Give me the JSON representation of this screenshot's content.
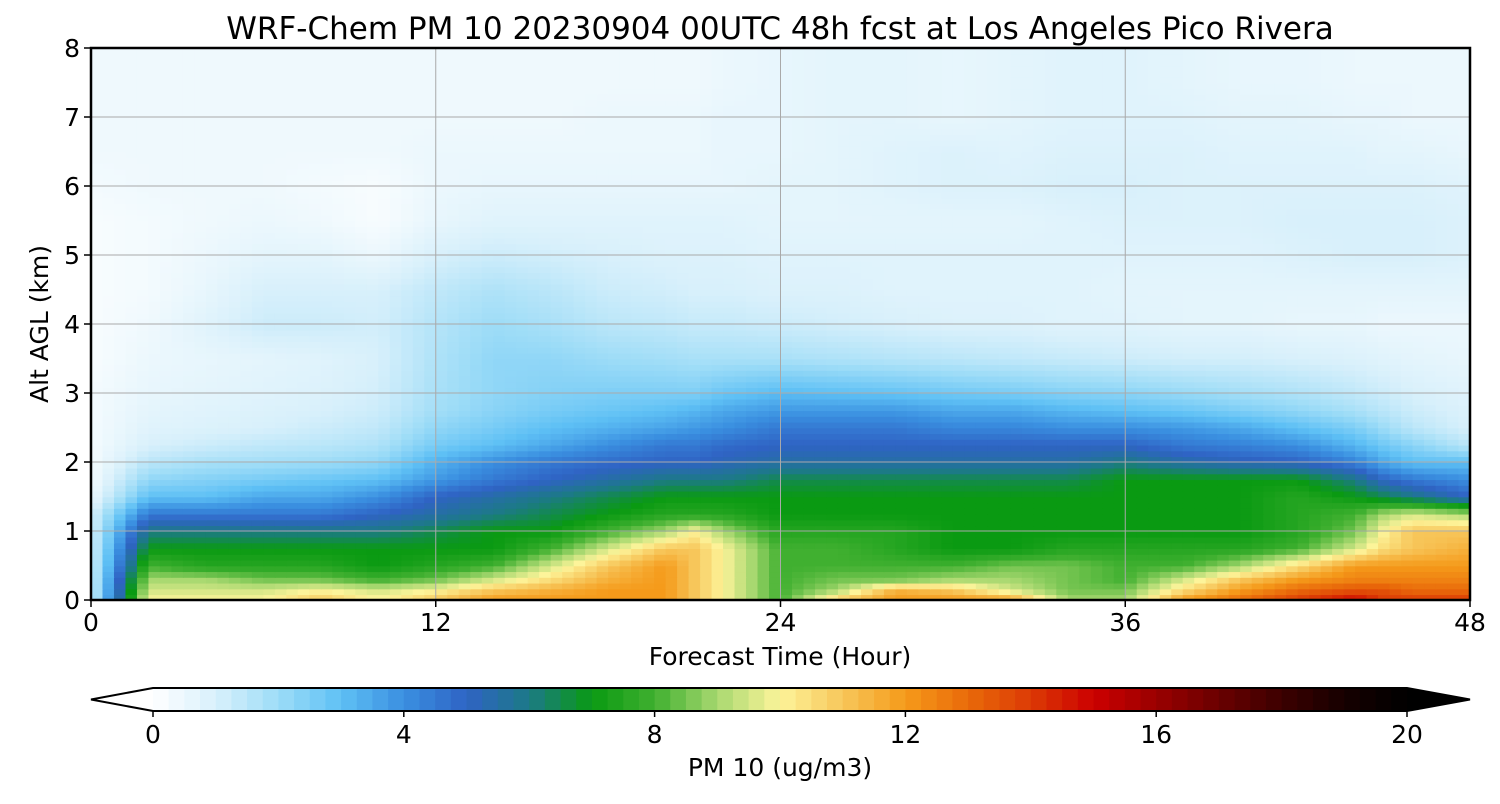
{
  "chart_data": {
    "type": "heatmap",
    "title": "WRF-Chem PM 10  20230904 00UTC 48h fcst at Los Angeles Pico Rivera",
    "xlabel": "Forecast Time (Hour)",
    "ylabel": "Alt AGL (km)",
    "xlim": [
      0,
      48
    ],
    "ylim": [
      0,
      8
    ],
    "xticks": [
      0,
      12,
      24,
      36,
      48
    ],
    "yticks": [
      0,
      1,
      2,
      3,
      4,
      5,
      6,
      7,
      8
    ],
    "xtick_labels": [
      "0",
      "12",
      "24",
      "36",
      "48"
    ],
    "ytick_labels": [
      "0",
      "1",
      "2",
      "3",
      "4",
      "5",
      "6",
      "7",
      "8"
    ],
    "grid": true,
    "colorbar": {
      "label": "PM 10  (ug/m3)",
      "orientation": "horizontal",
      "position": "bottom",
      "range": [
        0,
        20
      ],
      "ticks": [
        0,
        4,
        8,
        12,
        16,
        20
      ],
      "tick_labels": [
        "0",
        "4",
        "8",
        "12",
        "16",
        "20"
      ],
      "extend": "both",
      "colors": [
        {
          "value": 0,
          "color": "#ffffff"
        },
        {
          "value": 1,
          "color": "#d8f0fb"
        },
        {
          "value": 2,
          "color": "#9ddcf7"
        },
        {
          "value": 3,
          "color": "#5ec0f5"
        },
        {
          "value": 4,
          "color": "#3a8fe0"
        },
        {
          "value": 5,
          "color": "#2f63c4"
        },
        {
          "value": 6,
          "color": "#1c7a86"
        },
        {
          "value": 7,
          "color": "#0a9a12"
        },
        {
          "value": 8,
          "color": "#40b030"
        },
        {
          "value": 9,
          "color": "#a8d870"
        },
        {
          "value": 10,
          "color": "#fdf49a"
        },
        {
          "value": 11,
          "color": "#f7c65a"
        },
        {
          "value": 12,
          "color": "#f59a1a"
        },
        {
          "value": 13,
          "color": "#e96a0a"
        },
        {
          "value": 14,
          "color": "#dc3a05"
        },
        {
          "value": 15,
          "color": "#cc0000"
        },
        {
          "value": 16,
          "color": "#9a0000"
        },
        {
          "value": 17,
          "color": "#6a0000"
        },
        {
          "value": 18,
          "color": "#3c0000"
        },
        {
          "value": 19,
          "color": "#160000"
        },
        {
          "value": 20,
          "color": "#000000"
        }
      ]
    },
    "x": [
      0,
      2,
      4,
      6,
      8,
      10,
      12,
      14,
      16,
      18,
      20,
      21,
      22,
      24,
      26,
      28,
      30,
      32,
      34,
      36,
      38,
      40,
      42,
      44,
      45,
      46,
      48
    ],
    "y": [
      0,
      0.15,
      0.3,
      0.5,
      0.75,
      1.0,
      1.25,
      1.5,
      1.75,
      2.0,
      2.25,
      2.5,
      2.75,
      3.0,
      3.5,
      4.0,
      4.5,
      5.0,
      5.5,
      6.0,
      6.5,
      7.0,
      7.5,
      8.0
    ],
    "z": [
      [
        1,
        10,
        10,
        10,
        11,
        10,
        11,
        12,
        12,
        12,
        12,
        11,
        10,
        8,
        11,
        12,
        12,
        12,
        9,
        9,
        12,
        13,
        14,
        15,
        14,
        14,
        14
      ],
      [
        1,
        9.5,
        9.5,
        9.5,
        10,
        9.5,
        10,
        11,
        11.5,
        12,
        12,
        11,
        10,
        8,
        9,
        11.5,
        11,
        9.5,
        8.5,
        8.5,
        10.5,
        12,
        13,
        13.5,
        13.5,
        13,
        13
      ],
      [
        1,
        9,
        9,
        8.5,
        8.5,
        8,
        8.5,
        9.5,
        10.5,
        11.5,
        12,
        11,
        10,
        8,
        8.5,
        8.5,
        9,
        9,
        8.5,
        8,
        9.5,
        11,
        12,
        12.5,
        12.5,
        12.5,
        12.5
      ],
      [
        1,
        8,
        7.5,
        7.5,
        7.5,
        7,
        7.5,
        8,
        9.5,
        11,
        12,
        11,
        10,
        8,
        8,
        8,
        8,
        8.5,
        8.5,
        8,
        8,
        9,
        10.5,
        12,
        12,
        12,
        12
      ],
      [
        1,
        7,
        7,
        7,
        7,
        7,
        7,
        7,
        8,
        9.5,
        11,
        11,
        10,
        8,
        8,
        7.5,
        7,
        7,
        7.5,
        7.5,
        7.5,
        7.5,
        8,
        9.5,
        10.5,
        11,
        11.5
      ],
      [
        1,
        6,
        6,
        6,
        6,
        6,
        6.5,
        7,
        7,
        8,
        9,
        10,
        9,
        7.5,
        7.5,
        7.5,
        7,
        7,
        7,
        7,
        7,
        7,
        7.5,
        8.5,
        10,
        11,
        11
      ],
      [
        1,
        4.5,
        4.5,
        4.5,
        4.5,
        5,
        5.5,
        6,
        6.5,
        7,
        7.5,
        7.5,
        7.5,
        7,
        7,
        7,
        7,
        7,
        7,
        7,
        7,
        7,
        7.5,
        8,
        9,
        9.5,
        9
      ],
      [
        0.5,
        3,
        3,
        3.5,
        3.5,
        4,
        5,
        5.5,
        6,
        6.5,
        7,
        7,
        7,
        7,
        7,
        7,
        7,
        7,
        7,
        7,
        7,
        7,
        7.5,
        7,
        6.5,
        6,
        5
      ],
      [
        0.3,
        2.2,
        2.4,
        2.6,
        2.8,
        3,
        3.8,
        4.5,
        5,
        5.5,
        6,
        6,
        6,
        6.5,
        6.5,
        6.5,
        6.5,
        6.5,
        6.5,
        7,
        7,
        7,
        7,
        6,
        5,
        4.5,
        4
      ],
      [
        0.3,
        1.5,
        1.8,
        1.9,
        2,
        2.2,
        3.3,
        4,
        4.5,
        4.8,
        5,
        5,
        5.2,
        5.5,
        5.5,
        5.5,
        5.5,
        5.5,
        5.5,
        6,
        5.5,
        5.2,
        5,
        4.3,
        3.5,
        3,
        3
      ],
      [
        0.3,
        1,
        1.2,
        1.4,
        1.5,
        1.7,
        2.6,
        3,
        3.5,
        4,
        4.5,
        4.5,
        4.8,
        5,
        5,
        5,
        5,
        5,
        5,
        5,
        4.5,
        4.3,
        4,
        3.2,
        2.7,
        2.3,
        1.5
      ],
      [
        0.3,
        0.8,
        0.9,
        1,
        1.2,
        1.4,
        2.2,
        2.6,
        3,
        3.3,
        3.6,
        3.8,
        4,
        4.5,
        4.5,
        4.5,
        4.2,
        4.2,
        4,
        4,
        3.8,
        3.5,
        3,
        2.5,
        2,
        1.5,
        1
      ],
      [
        0.3,
        0.7,
        0.8,
        0.9,
        1,
        1.2,
        1.9,
        2.3,
        2.6,
        2.8,
        3,
        3.2,
        3.5,
        3.8,
        3.8,
        3.8,
        3.5,
        3.5,
        3.2,
        3,
        2.8,
        2.5,
        2.2,
        1.8,
        1.5,
        1.2,
        0.9
      ],
      [
        0.3,
        0.6,
        0.7,
        0.8,
        0.9,
        1.1,
        1.8,
        2.2,
        2.4,
        2.5,
        2.5,
        2.5,
        2.8,
        3.1,
        3,
        2.9,
        2.7,
        2.6,
        2.4,
        2.3,
        2.1,
        1.9,
        1.7,
        1.4,
        1.2,
        1,
        0.8
      ],
      [
        0.2,
        0.5,
        0.6,
        0.7,
        0.8,
        1,
        1.7,
        2.2,
        2.2,
        2,
        1.9,
        1.8,
        1.8,
        1.8,
        1.7,
        1.6,
        1.5,
        1.4,
        1.3,
        1.2,
        1.1,
        1.1,
        1,
        0.9,
        0.8,
        0.7,
        0.6
      ],
      [
        0.2,
        0.4,
        0.8,
        1.2,
        1.2,
        1.1,
        1.6,
        2,
        1.8,
        1.5,
        1.4,
        1.3,
        1.3,
        1.2,
        1.1,
        1,
        0.9,
        0.9,
        0.8,
        0.8,
        0.7,
        0.7,
        0.6,
        0.6,
        0.5,
        0.5,
        0.5
      ],
      [
        0.2,
        0.3,
        0.6,
        1,
        1,
        1,
        1.4,
        1.7,
        1.5,
        1.2,
        1.1,
        1,
        1,
        0.9,
        0.9,
        0.8,
        0.8,
        0.8,
        0.8,
        0.7,
        0.7,
        0.7,
        0.7,
        0.7,
        0.7,
        0.7,
        0.7
      ],
      [
        0.2,
        0.3,
        0.5,
        0.7,
        0.7,
        0.5,
        1,
        1.2,
        1.1,
        1,
        0.9,
        0.9,
        0.9,
        0.8,
        0.8,
        0.8,
        0.8,
        0.8,
        0.8,
        0.8,
        0.8,
        0.8,
        0.9,
        1,
        1,
        1,
        0.9
      ],
      [
        0.2,
        0.3,
        0.4,
        0.5,
        0.4,
        0.2,
        0.6,
        0.8,
        0.8,
        0.8,
        0.8,
        0.8,
        0.8,
        0.7,
        0.7,
        0.7,
        0.7,
        0.7,
        0.8,
        0.9,
        0.9,
        0.9,
        1,
        1,
        1,
        1,
        0.9
      ],
      [
        0.3,
        0.4,
        0.4,
        0.4,
        0.3,
        0.2,
        0.5,
        0.6,
        0.6,
        0.6,
        0.6,
        0.6,
        0.6,
        0.7,
        0.7,
        0.8,
        0.9,
        0.9,
        1,
        1,
        0.9,
        0.9,
        0.9,
        0.9,
        0.9,
        0.9,
        0.8
      ],
      [
        0.4,
        0.4,
        0.4,
        0.4,
        0.4,
        0.4,
        0.5,
        0.5,
        0.5,
        0.5,
        0.5,
        0.5,
        0.6,
        0.6,
        0.7,
        0.8,
        0.9,
        0.8,
        0.9,
        0.9,
        0.9,
        0.8,
        0.8,
        0.8,
        0.7,
        0.7,
        0.6
      ],
      [
        0.4,
        0.4,
        0.4,
        0.4,
        0.4,
        0.4,
        0.4,
        0.4,
        0.4,
        0.5,
        0.5,
        0.5,
        0.6,
        0.6,
        0.7,
        0.7,
        0.6,
        0.7,
        0.8,
        0.8,
        0.8,
        0.7,
        0.7,
        0.6,
        0.6,
        0.5,
        0.5
      ],
      [
        0.4,
        0.4,
        0.4,
        0.4,
        0.4,
        0.4,
        0.4,
        0.4,
        0.4,
        0.4,
        0.4,
        0.4,
        0.5,
        0.6,
        0.7,
        0.7,
        0.6,
        0.7,
        0.8,
        0.8,
        0.7,
        0.6,
        0.6,
        0.5,
        0.5,
        0.5,
        0.5
      ],
      [
        0.4,
        0.4,
        0.4,
        0.4,
        0.4,
        0.4,
        0.4,
        0.4,
        0.4,
        0.4,
        0.4,
        0.4,
        0.5,
        0.6,
        0.7,
        0.7,
        0.6,
        0.7,
        0.8,
        0.8,
        0.7,
        0.6,
        0.6,
        0.5,
        0.5,
        0.5,
        0.5
      ]
    ]
  }
}
